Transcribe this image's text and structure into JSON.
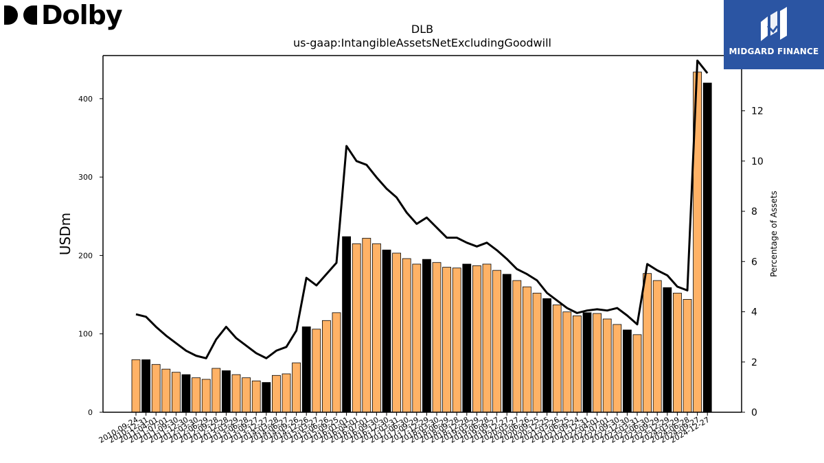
{
  "brand": {
    "left_logo_text": "Dolby",
    "right_logo_text": "MIDGARD FINANCE"
  },
  "colors": {
    "bar_default": "#ffb266",
    "bar_highlight": "#000000",
    "line": "#000000",
    "brand_blue": "#2b55a3"
  },
  "chart_data": {
    "type": "bar",
    "title": "DLB",
    "subtitle": "us-gaap:IntangibleAssetsNetExcludingGoodwill",
    "ylabel": "USDm",
    "y2label": "Percentage of Assets",
    "ylim": [
      0,
      455
    ],
    "y2lim": [
      0,
      14.2
    ],
    "yticks": [
      0,
      100,
      200,
      300,
      400
    ],
    "y2ticks": [
      0,
      2,
      4,
      6,
      8,
      10,
      12,
      14
    ],
    "categories": [
      "2010-09-24",
      "2010-12-31",
      "2011-04-01",
      "2011-07-01",
      "2011-09-30",
      "2011-12-30",
      "2012-03-30",
      "2012-06-29",
      "2012-09-28",
      "2012-12-28",
      "2013-03-29",
      "2013-06-28",
      "2013-09-27",
      "2013-12-27",
      "2014-03-28",
      "2014-06-27",
      "2014-09-26",
      "2014-12-26",
      "2015-03-27",
      "2015-06-26",
      "2015-09-25",
      "2016-01-01",
      "2016-04-01",
      "2016-07-01",
      "2016-09-30",
      "2016-12-30",
      "2017-03-31",
      "2017-06-30",
      "2017-09-29",
      "2017-12-29",
      "2018-03-30",
      "2018-06-29",
      "2018-09-28",
      "2018-12-28",
      "2019-03-29",
      "2019-06-28",
      "2019-09-27",
      "2019-12-27",
      "2020-03-27",
      "2020-06-26",
      "2020-09-25",
      "2020-12-25",
      "2021-03-26",
      "2021-06-25",
      "2021-09-24",
      "2021-12-31",
      "2022-04-01",
      "2022-07-01",
      "2022-09-30",
      "2022-12-30",
      "2023-03-31",
      "2023-06-30",
      "2023-09-29",
      "2023-12-29",
      "2024-03-29",
      "2024-06-28",
      "2024-09-27",
      "2024-12-27"
    ],
    "series": [
      {
        "kind": "bar",
        "axis": "left",
        "values": [
          67,
          67,
          61,
          55,
          51,
          48,
          44,
          42,
          56,
          53,
          48,
          44,
          40,
          38,
          47,
          49,
          63,
          109,
          106,
          117,
          127,
          224,
          215,
          222,
          215,
          207,
          203,
          196,
          189,
          195,
          191,
          185,
          184,
          189,
          187,
          189,
          181,
          176,
          168,
          160,
          152,
          145,
          137,
          128,
          123,
          127,
          126,
          119,
          112,
          105,
          99,
          177,
          168,
          159,
          152,
          144,
          434,
          420
        ],
        "highlight": [
          false,
          true,
          false,
          false,
          false,
          true,
          false,
          false,
          false,
          true,
          false,
          false,
          false,
          true,
          false,
          false,
          false,
          true,
          false,
          false,
          false,
          true,
          false,
          false,
          false,
          true,
          false,
          false,
          false,
          true,
          false,
          false,
          false,
          true,
          false,
          false,
          false,
          true,
          false,
          false,
          false,
          true,
          false,
          false,
          false,
          true,
          false,
          false,
          false,
          true,
          false,
          false,
          false,
          true,
          false,
          false,
          false,
          true
        ]
      },
      {
        "kind": "line",
        "axis": "right",
        "values": [
          3.9,
          3.8,
          3.4,
          3.05,
          2.75,
          2.45,
          2.25,
          2.15,
          2.9,
          3.4,
          2.95,
          2.65,
          2.35,
          2.15,
          2.45,
          2.6,
          3.25,
          5.35,
          5.05,
          5.5,
          5.95,
          10.6,
          10.0,
          9.85,
          9.35,
          8.9,
          8.55,
          7.95,
          7.5,
          7.75,
          7.35,
          6.95,
          6.95,
          6.75,
          6.6,
          6.75,
          6.45,
          6.1,
          5.7,
          5.5,
          5.25,
          4.75,
          4.45,
          4.15,
          3.95,
          4.05,
          4.1,
          4.05,
          4.15,
          3.85,
          3.5,
          5.9,
          5.65,
          5.45,
          5.0,
          4.85,
          14.0,
          13.5
        ]
      }
    ],
    "grid": false
  }
}
